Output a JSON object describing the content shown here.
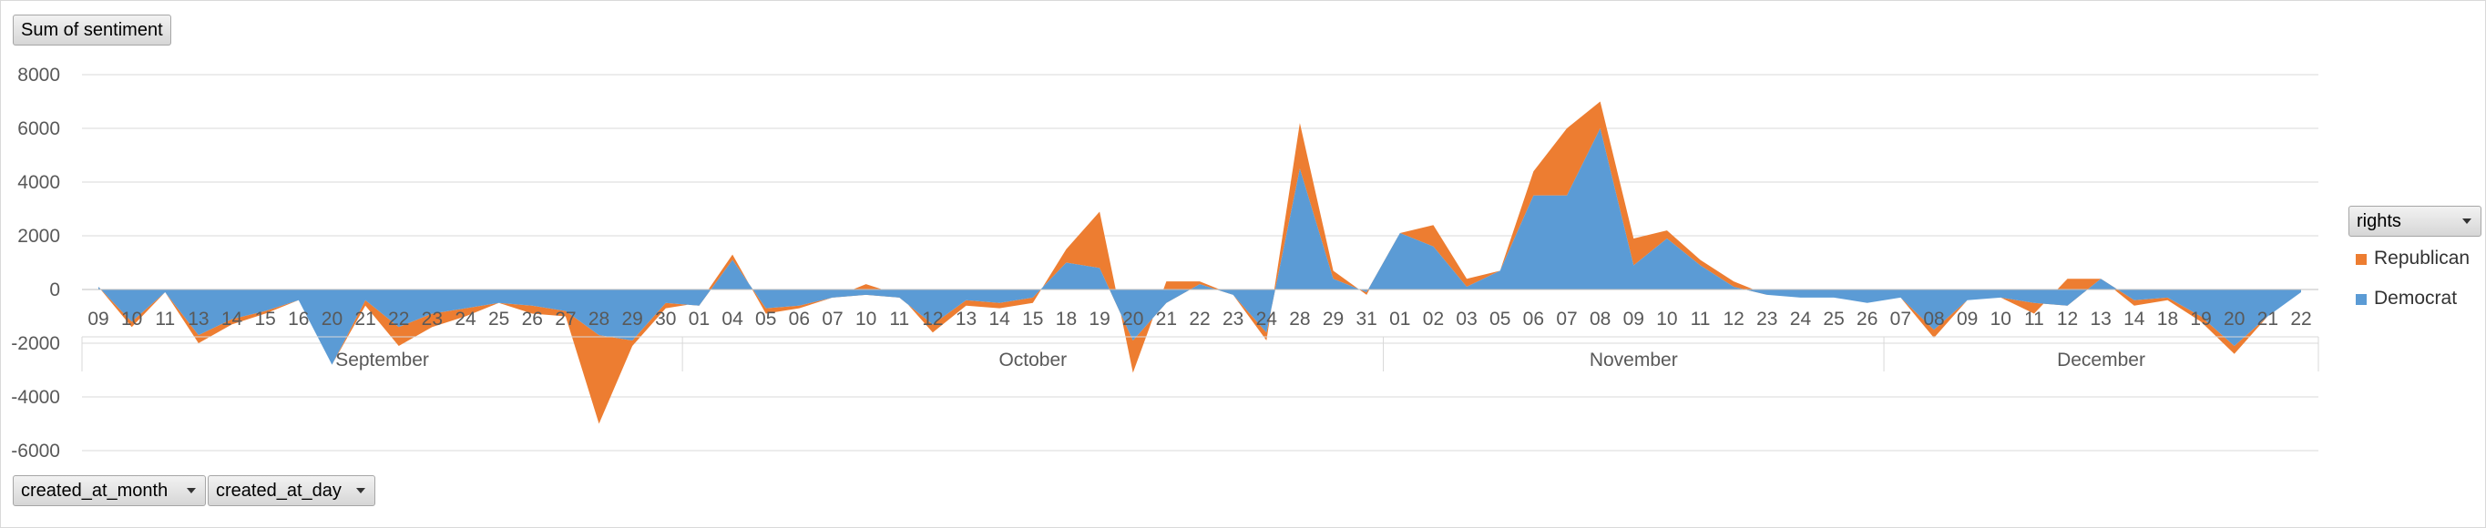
{
  "buttons": {
    "value_field": "Sum of sentiment",
    "row_field_1": "created_at_month",
    "row_field_2": "created_at_day",
    "series_field": "rights"
  },
  "chart_data": {
    "type": "area",
    "stacked": true,
    "ylim": [
      -6000,
      8000
    ],
    "yticks": [
      8000,
      6000,
      4000,
      2000,
      0,
      -2000,
      -4000,
      -6000
    ],
    "grid": true,
    "legend_position": "right",
    "groups": [
      {
        "label": "September",
        "count": 18
      },
      {
        "label": "October",
        "count": 21
      },
      {
        "label": "November",
        "count": 15
      },
      {
        "label": "December",
        "count": 13
      }
    ],
    "categories": [
      "09",
      "10",
      "11",
      "13",
      "14",
      "15",
      "16",
      "20",
      "21",
      "22",
      "23",
      "24",
      "25",
      "26",
      "27",
      "28",
      "29",
      "30",
      "01",
      "04",
      "05",
      "06",
      "07",
      "10",
      "11",
      "12",
      "13",
      "14",
      "15",
      "18",
      "19",
      "20",
      "21",
      "22",
      "23",
      "24",
      "28",
      "29",
      "31",
      "01",
      "02",
      "03",
      "05",
      "06",
      "07",
      "08",
      "09",
      "10",
      "11",
      "12",
      "23",
      "24",
      "25",
      "26",
      "07",
      "08",
      "09",
      "10",
      "11",
      "12",
      "13",
      "14",
      "18",
      "19",
      "20",
      "21",
      "22"
    ],
    "series": [
      {
        "name": "Democrat",
        "color": "#5b9bd5",
        "values": [
          100,
          -1200,
          -100,
          -1700,
          -1100,
          -800,
          -400,
          -2800,
          -400,
          -1400,
          -900,
          -700,
          -500,
          -600,
          -800,
          -1700,
          -1900,
          -500,
          -600,
          1100,
          -700,
          -600,
          -300,
          -200,
          -300,
          -1300,
          -400,
          -500,
          -300,
          1000,
          800,
          -1900,
          -500,
          200,
          -200,
          -1600,
          4500,
          400,
          -100,
          2100,
          1600,
          100,
          700,
          3500,
          3500,
          6000,
          900,
          1900,
          900,
          100,
          -200,
          -300,
          -300,
          -500,
          -300,
          -1500,
          -400,
          -300,
          -500,
          -600,
          400,
          -400,
          -300,
          -1000,
          -2100,
          -1000,
          -100
        ]
      },
      {
        "name": "Republican",
        "color": "#ed7d31",
        "values": [
          0,
          -200,
          0,
          -300,
          -200,
          -100,
          0,
          0,
          -200,
          -700,
          -500,
          -300,
          0,
          -300,
          -200,
          -3300,
          -200,
          -200,
          100,
          200,
          -200,
          -100,
          0,
          400,
          100,
          -300,
          -200,
          -200,
          -200,
          500,
          2100,
          -1200,
          800,
          100,
          0,
          -300,
          1700,
          300,
          -100,
          0,
          800,
          300,
          0,
          900,
          2500,
          1000,
          1000,
          300,
          200,
          200,
          0,
          0,
          0,
          0,
          0,
          -300,
          0,
          0,
          -400,
          1000,
          0,
          -200,
          -100,
          -200,
          -300,
          0,
          0
        ]
      }
    ]
  }
}
